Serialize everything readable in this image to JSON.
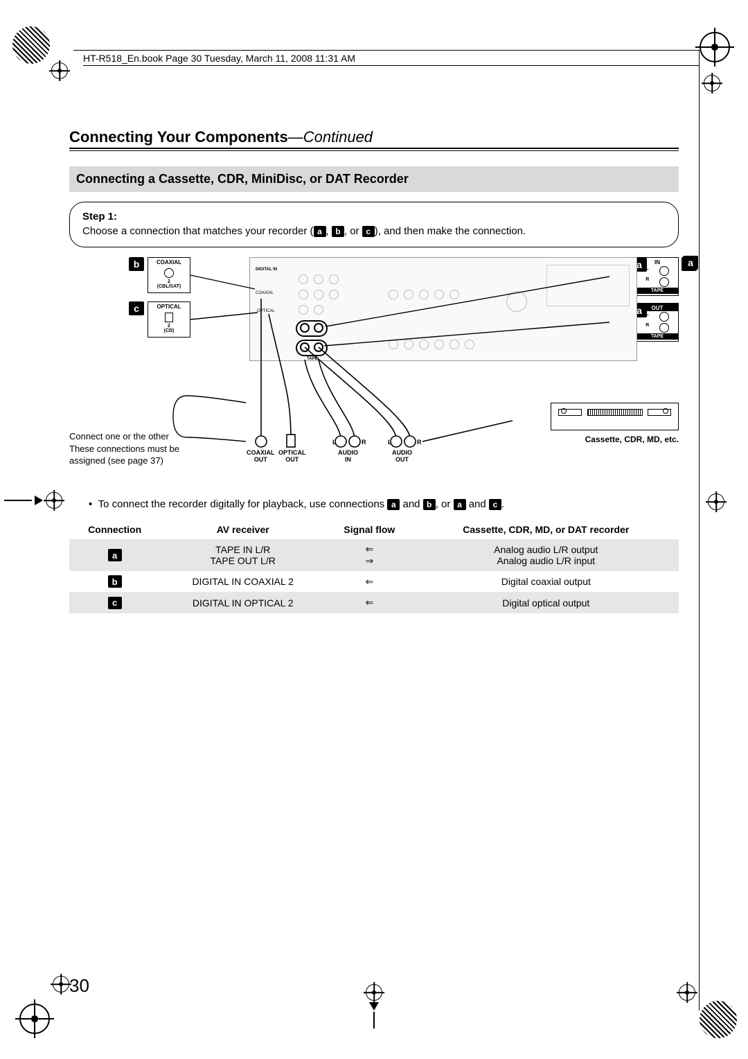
{
  "header": {
    "book_info": "HT-R518_En.book  Page 30  Tuesday, March 11, 2008  11:31 AM"
  },
  "title": {
    "main": "Connecting Your Components",
    "continued": "—Continued"
  },
  "heading": "Connecting a Cassette, CDR, MiniDisc, or DAT Recorder",
  "step": {
    "label": "Step 1:",
    "text_before": "Choose a connection that matches your recorder (",
    "text_mid1": ", ",
    "text_mid2": ", or ",
    "text_after": "), and then make the connection."
  },
  "tags": {
    "a": "a",
    "b": "b",
    "c": "c"
  },
  "diagram": {
    "coaxial_label": "COAXIAL",
    "coaxial_sub": "2\n(CBL/SAT)",
    "optical_label": "OPTICAL",
    "optical_sub": "2\n(CD)",
    "in_label": "IN",
    "out_label": "OUT",
    "tape_label": "TAPE",
    "l_label": "L",
    "r_label": "R",
    "note_line1": "Connect one or the other",
    "note_line2": "These connections must be",
    "note_line3": "assigned (see page 37)",
    "conn_labels": {
      "coax_out": "COAXIAL\nOUT",
      "opt_out": "OPTICAL\nOUT",
      "audio_in": "AUDIO\nIN",
      "audio_out": "AUDIO\nOUT"
    },
    "recorder_label": "Cassette, CDR, MD, etc."
  },
  "bullet": {
    "text_before": "To connect the recorder digitally for playback, use connections ",
    "and": " and ",
    "or": ", or ",
    "period": "."
  },
  "table": {
    "headers": [
      "Connection",
      "AV receiver",
      "Signal flow",
      "Cassette, CDR, MD, or DAT recorder"
    ],
    "rows": [
      {
        "tag": "a",
        "receiver": "TAPE IN L/R\nTAPE OUT L/R",
        "flow": "⇐\n⇒",
        "recorder": "Analog audio L/R output\nAnalog audio L/R input",
        "shade": true
      },
      {
        "tag": "b",
        "receiver": "DIGITAL IN COAXIAL 2",
        "flow": "⇐",
        "recorder": "Digital coaxial output",
        "shade": false
      },
      {
        "tag": "c",
        "receiver": "DIGITAL IN OPTICAL 2",
        "flow": "⇐",
        "recorder": "Digital optical output",
        "shade": true
      }
    ]
  },
  "page_number": "30"
}
